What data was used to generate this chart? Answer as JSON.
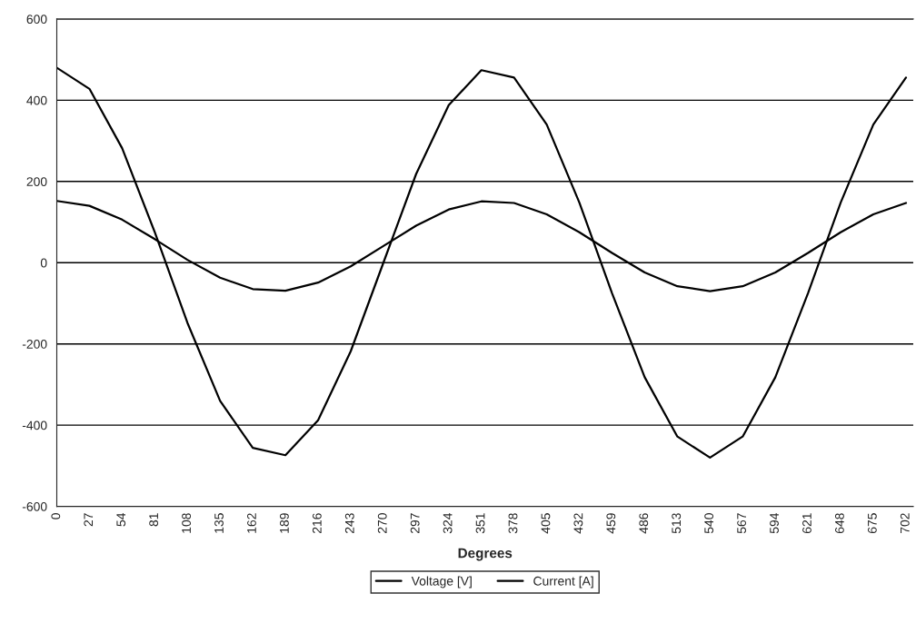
{
  "chart_data": {
    "type": "line",
    "xlabel": "Degrees",
    "x": [
      0,
      27,
      54,
      81,
      108,
      135,
      162,
      189,
      216,
      243,
      270,
      297,
      324,
      351,
      378,
      405,
      432,
      459,
      486,
      513,
      540,
      567,
      594,
      621,
      648,
      675,
      702
    ],
    "series": [
      {
        "name": "Voltage [V]",
        "color": "#000000",
        "values": [
          480,
          428,
          282,
          75,
          -148,
          -340,
          -456,
          -474,
          -388,
          -218,
          0,
          218,
          388,
          474,
          456,
          340,
          148,
          -75,
          -282,
          -428,
          -480,
          -428,
          -282,
          -75,
          148,
          340,
          456
        ]
      },
      {
        "name": "Current [A]",
        "color": "#000000",
        "values": [
          152,
          140,
          106,
          58,
          7,
          -37,
          -65,
          -69,
          -49,
          -9,
          41,
          91,
          131,
          151,
          147,
          119,
          75,
          24,
          -24,
          -58,
          -70,
          -58,
          -24,
          24,
          75,
          119,
          147
        ]
      }
    ],
    "xlim": [
      0,
      708
    ],
    "xticks": [
      0,
      27,
      54,
      81,
      108,
      135,
      162,
      189,
      216,
      243,
      270,
      297,
      324,
      351,
      378,
      405,
      432,
      459,
      486,
      513,
      540,
      567,
      594,
      621,
      648,
      675,
      702
    ],
    "ylim": [
      -600,
      600
    ],
    "yticks": [
      -600,
      -400,
      -200,
      0,
      200,
      400,
      600
    ],
    "grid": "y",
    "legend": "bottom",
    "marker": "none",
    "line_style": "solid"
  }
}
